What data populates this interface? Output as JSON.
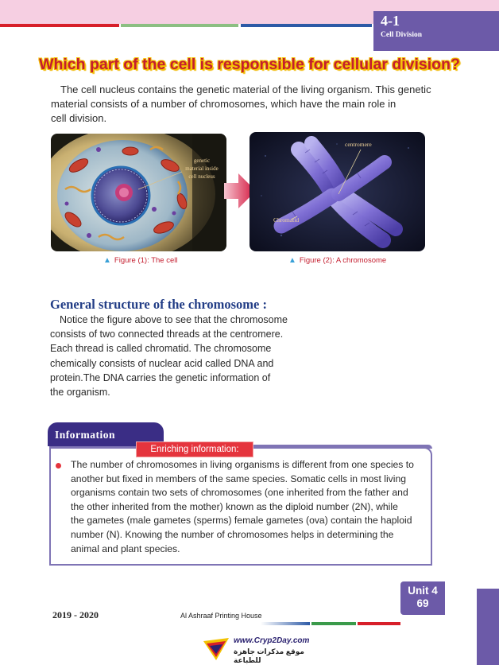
{
  "header": {
    "lesson_number": "4-1",
    "lesson_title": "Cell Division"
  },
  "main_heading": "Which part of the cell is responsible for cellular division?",
  "intro_lines": [
    "The cell nucleus contains the genetic material of the living organism. This genetic",
    "material consists of a number of chromosomes, which have the main role in",
    "cell division."
  ],
  "figures": {
    "cell": {
      "label_lines": [
        "genetic",
        "material inside",
        "cell nucleus"
      ],
      "caption": "Figure (1): The cell"
    },
    "chromosome": {
      "label_centromere": "centromere",
      "label_chromatid": "Chromatid",
      "caption": "Figure (2): A chromosome"
    }
  },
  "section": {
    "title": "General structure of the chromosome :",
    "lines": [
      "Notice the figure above to see that the chromosome",
      "consists of two connected threads at the centromere.",
      "Each thread is called  chromatid. The chromosome",
      "chemically consists of nuclear acid called DNA and",
      "protein.The DNA carries the genetic information of",
      "the organism."
    ]
  },
  "information": {
    "tab_label": "Information",
    "enrich_label": "Enriching information:",
    "lines": [
      "The number of chromosomes in living organisms is different from one species to",
      "another but fixed in members of the same species. Somatic cells in most living",
      "organisms contain two sets of chromosomes (one inherited from the father and",
      "the other inherited from the mother) known as the diploid number (2N), while",
      "the gametes (male gametes (sperms) female gametes (ova) contain the haploid",
      "number (N). Knowing the number of chromosomes helps in determining the",
      "animal and plant species."
    ]
  },
  "unit_tab": {
    "unit_label": "Unit 4",
    "page_number": "69"
  },
  "footer": {
    "year": "2019 - 2020",
    "printer": "Al Ashraaf Printing House"
  },
  "watermark": {
    "url": "www.Cryp2Day.com",
    "arabic": "موقع مذكرات جاهزة للطباعة"
  },
  "colors": {
    "heading_red": "#c41e2f",
    "heading_glow": "#f5c400",
    "section_blue": "#223d86",
    "unit_purple": "#6c5aa8",
    "info_navy": "#3a2d85",
    "enrich_red": "#e5343d",
    "caption_triangle": "#39a0d7",
    "top_band_pink": "#f6cfe2"
  },
  "icons": {
    "caption_marker": "triangle-up-icon",
    "bullet": "red-dot-icon",
    "arrow": "right-arrow-icon"
  }
}
